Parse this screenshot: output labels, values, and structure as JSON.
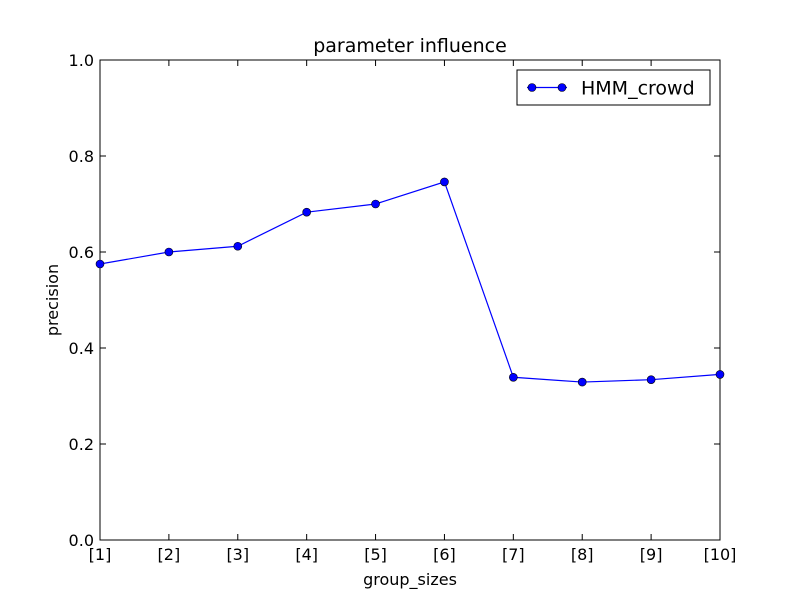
{
  "chart_data": {
    "type": "line",
    "title": "parameter influence",
    "xlabel": "group_sizes",
    "ylabel": "precision",
    "categories": [
      "[1]",
      "[2]",
      "[3]",
      "[4]",
      "[5]",
      "[6]",
      "[7]",
      "[8]",
      "[9]",
      "[10]"
    ],
    "ylim": [
      0.0,
      1.0
    ],
    "yticks": [
      "0.0",
      "0.2",
      "0.4",
      "0.6",
      "0.8",
      "1.0"
    ],
    "grid": false,
    "legend_position": "top-right",
    "series": [
      {
        "name": "HMM_crowd",
        "color": "#0000ff",
        "marker": "circle",
        "values": [
          0.575,
          0.6,
          0.612,
          0.683,
          0.7,
          0.746,
          0.339,
          0.329,
          0.334,
          0.345
        ]
      }
    ]
  }
}
